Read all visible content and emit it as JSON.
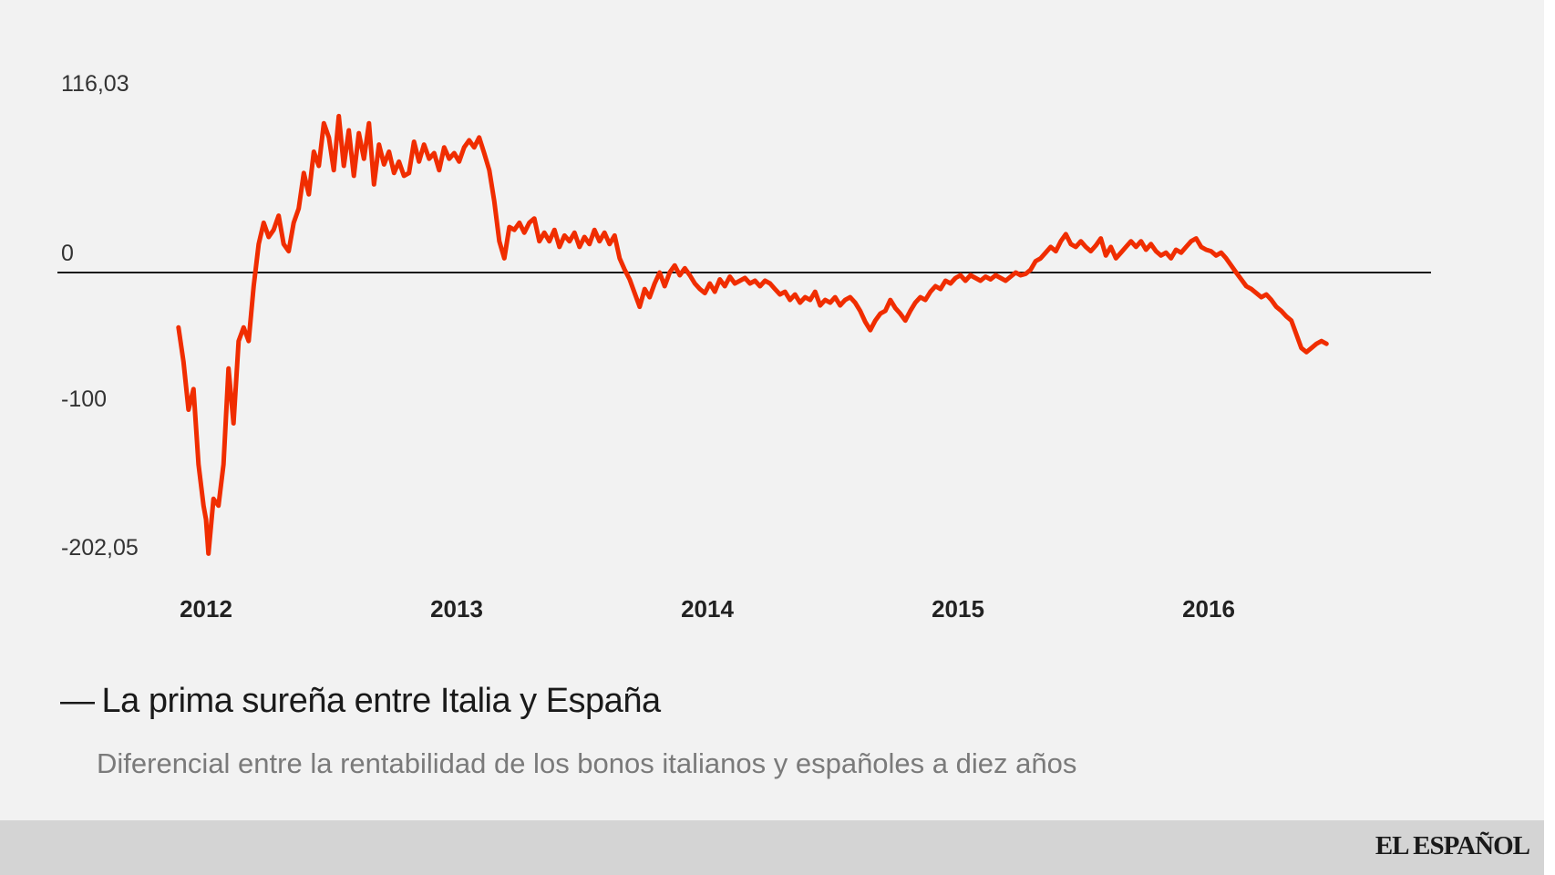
{
  "chart_data": {
    "type": "line",
    "title": "La prima sureña entre Italia y España",
    "subtitle": "Diferencial entre la rentabilidad de los bonos italianos y españoles a diez años",
    "xlabel": "",
    "ylabel": "",
    "y_ticks": [
      {
        "value": 116.03,
        "label": "116,03"
      },
      {
        "value": 0,
        "label": "0"
      },
      {
        "value": -100,
        "label": "-100"
      },
      {
        "value": -202.05,
        "label": "-202,05"
      }
    ],
    "x_ticks": [
      {
        "value": 2012.0,
        "label": "2012"
      },
      {
        "value": 2013.0,
        "label": "2013"
      },
      {
        "value": 2014.0,
        "label": "2014"
      },
      {
        "value": 2015.0,
        "label": "2015"
      },
      {
        "value": 2016.0,
        "label": "2016"
      }
    ],
    "xlim": [
      2011.6,
      2017.1
    ],
    "ylim": [
      -202.05,
      116.03
    ],
    "zero_line": true,
    "series": [
      {
        "name": "La prima sureña entre Italia y España",
        "color": "#f02d00",
        "points": [
          [
            2011.89,
            -40
          ],
          [
            2011.91,
            -65
          ],
          [
            2011.93,
            -100
          ],
          [
            2011.95,
            -85
          ],
          [
            2011.97,
            -140
          ],
          [
            2011.99,
            -170
          ],
          [
            2012.0,
            -180
          ],
          [
            2012.01,
            -205
          ],
          [
            2012.03,
            -165
          ],
          [
            2012.05,
            -170
          ],
          [
            2012.07,
            -140
          ],
          [
            2012.09,
            -70
          ],
          [
            2012.11,
            -110
          ],
          [
            2012.13,
            -50
          ],
          [
            2012.15,
            -40
          ],
          [
            2012.17,
            -50
          ],
          [
            2012.19,
            -10
          ],
          [
            2012.21,
            20
          ],
          [
            2012.23,
            35
          ],
          [
            2012.25,
            25
          ],
          [
            2012.27,
            30
          ],
          [
            2012.29,
            40
          ],
          [
            2012.31,
            20
          ],
          [
            2012.33,
            15
          ],
          [
            2012.35,
            35
          ],
          [
            2012.37,
            45
          ],
          [
            2012.39,
            70
          ],
          [
            2012.41,
            55
          ],
          [
            2012.43,
            85
          ],
          [
            2012.45,
            75
          ],
          [
            2012.47,
            105
          ],
          [
            2012.49,
            95
          ],
          [
            2012.51,
            72
          ],
          [
            2012.53,
            110
          ],
          [
            2012.55,
            75
          ],
          [
            2012.57,
            100
          ],
          [
            2012.59,
            68
          ],
          [
            2012.61,
            98
          ],
          [
            2012.63,
            80
          ],
          [
            2012.65,
            105
          ],
          [
            2012.67,
            62
          ],
          [
            2012.69,
            90
          ],
          [
            2012.71,
            76
          ],
          [
            2012.73,
            85
          ],
          [
            2012.75,
            70
          ],
          [
            2012.77,
            78
          ],
          [
            2012.79,
            68
          ],
          [
            2012.81,
            70
          ],
          [
            2012.83,
            92
          ],
          [
            2012.85,
            78
          ],
          [
            2012.87,
            90
          ],
          [
            2012.89,
            80
          ],
          [
            2012.91,
            84
          ],
          [
            2012.93,
            72
          ],
          [
            2012.95,
            88
          ],
          [
            2012.97,
            80
          ],
          [
            2012.99,
            84
          ],
          [
            2013.01,
            78
          ],
          [
            2013.03,
            88
          ],
          [
            2013.05,
            93
          ],
          [
            2013.07,
            88
          ],
          [
            2013.09,
            95
          ],
          [
            2013.11,
            84
          ],
          [
            2013.13,
            72
          ],
          [
            2013.15,
            50
          ],
          [
            2013.17,
            22
          ],
          [
            2013.19,
            10
          ],
          [
            2013.21,
            32
          ],
          [
            2013.23,
            30
          ],
          [
            2013.25,
            35
          ],
          [
            2013.27,
            28
          ],
          [
            2013.29,
            35
          ],
          [
            2013.31,
            38
          ],
          [
            2013.33,
            22
          ],
          [
            2013.35,
            28
          ],
          [
            2013.37,
            22
          ],
          [
            2013.39,
            30
          ],
          [
            2013.41,
            18
          ],
          [
            2013.43,
            26
          ],
          [
            2013.45,
            22
          ],
          [
            2013.47,
            28
          ],
          [
            2013.49,
            18
          ],
          [
            2013.51,
            25
          ],
          [
            2013.53,
            20
          ],
          [
            2013.55,
            30
          ],
          [
            2013.57,
            22
          ],
          [
            2013.59,
            28
          ],
          [
            2013.61,
            20
          ],
          [
            2013.63,
            26
          ],
          [
            2013.65,
            10
          ],
          [
            2013.67,
            2
          ],
          [
            2013.69,
            -5
          ],
          [
            2013.71,
            -15
          ],
          [
            2013.73,
            -25
          ],
          [
            2013.75,
            -12
          ],
          [
            2013.77,
            -18
          ],
          [
            2013.79,
            -8
          ],
          [
            2013.81,
            0
          ],
          [
            2013.83,
            -10
          ],
          [
            2013.85,
            0
          ],
          [
            2013.87,
            5
          ],
          [
            2013.89,
            -2
          ],
          [
            2013.91,
            3
          ],
          [
            2013.93,
            -2
          ],
          [
            2013.95,
            -8
          ],
          [
            2013.97,
            -12
          ],
          [
            2013.99,
            -15
          ],
          [
            2014.01,
            -8
          ],
          [
            2014.03,
            -14
          ],
          [
            2014.05,
            -5
          ],
          [
            2014.07,
            -10
          ],
          [
            2014.09,
            -3
          ],
          [
            2014.11,
            -8
          ],
          [
            2014.13,
            -6
          ],
          [
            2014.15,
            -4
          ],
          [
            2014.17,
            -8
          ],
          [
            2014.19,
            -6
          ],
          [
            2014.21,
            -10
          ],
          [
            2014.23,
            -6
          ],
          [
            2014.25,
            -8
          ],
          [
            2014.27,
            -12
          ],
          [
            2014.29,
            -16
          ],
          [
            2014.31,
            -14
          ],
          [
            2014.33,
            -20
          ],
          [
            2014.35,
            -16
          ],
          [
            2014.37,
            -22
          ],
          [
            2014.39,
            -18
          ],
          [
            2014.41,
            -20
          ],
          [
            2014.43,
            -14
          ],
          [
            2014.45,
            -24
          ],
          [
            2014.47,
            -20
          ],
          [
            2014.49,
            -22
          ],
          [
            2014.51,
            -18
          ],
          [
            2014.53,
            -24
          ],
          [
            2014.55,
            -20
          ],
          [
            2014.57,
            -18
          ],
          [
            2014.59,
            -22
          ],
          [
            2014.61,
            -28
          ],
          [
            2014.63,
            -36
          ],
          [
            2014.65,
            -42
          ],
          [
            2014.67,
            -35
          ],
          [
            2014.69,
            -30
          ],
          [
            2014.71,
            -28
          ],
          [
            2014.73,
            -20
          ],
          [
            2014.75,
            -26
          ],
          [
            2014.77,
            -30
          ],
          [
            2014.79,
            -35
          ],
          [
            2014.81,
            -28
          ],
          [
            2014.83,
            -22
          ],
          [
            2014.85,
            -18
          ],
          [
            2014.87,
            -20
          ],
          [
            2014.89,
            -14
          ],
          [
            2014.91,
            -10
          ],
          [
            2014.93,
            -12
          ],
          [
            2014.95,
            -6
          ],
          [
            2014.97,
            -8
          ],
          [
            2014.99,
            -4
          ],
          [
            2015.01,
            -2
          ],
          [
            2015.03,
            -6
          ],
          [
            2015.05,
            -2
          ],
          [
            2015.07,
            -4
          ],
          [
            2015.09,
            -6
          ],
          [
            2015.11,
            -3
          ],
          [
            2015.13,
            -5
          ],
          [
            2015.15,
            -2
          ],
          [
            2015.17,
            -4
          ],
          [
            2015.19,
            -6
          ],
          [
            2015.21,
            -3
          ],
          [
            2015.23,
            0
          ],
          [
            2015.25,
            -2
          ],
          [
            2015.27,
            -1
          ],
          [
            2015.29,
            2
          ],
          [
            2015.31,
            8
          ],
          [
            2015.33,
            10
          ],
          [
            2015.35,
            14
          ],
          [
            2015.37,
            18
          ],
          [
            2015.39,
            15
          ],
          [
            2015.41,
            22
          ],
          [
            2015.43,
            27
          ],
          [
            2015.45,
            20
          ],
          [
            2015.47,
            18
          ],
          [
            2015.49,
            22
          ],
          [
            2015.51,
            18
          ],
          [
            2015.53,
            15
          ],
          [
            2015.55,
            19
          ],
          [
            2015.57,
            24
          ],
          [
            2015.59,
            12
          ],
          [
            2015.61,
            18
          ],
          [
            2015.63,
            10
          ],
          [
            2015.65,
            14
          ],
          [
            2015.67,
            18
          ],
          [
            2015.69,
            22
          ],
          [
            2015.71,
            18
          ],
          [
            2015.73,
            22
          ],
          [
            2015.75,
            16
          ],
          [
            2015.77,
            20
          ],
          [
            2015.79,
            15
          ],
          [
            2015.81,
            12
          ],
          [
            2015.83,
            14
          ],
          [
            2015.85,
            10
          ],
          [
            2015.87,
            16
          ],
          [
            2015.89,
            14
          ],
          [
            2015.91,
            18
          ],
          [
            2015.93,
            22
          ],
          [
            2015.95,
            24
          ],
          [
            2015.97,
            18
          ],
          [
            2015.99,
            16
          ],
          [
            2016.01,
            15
          ],
          [
            2016.03,
            12
          ],
          [
            2016.05,
            14
          ],
          [
            2016.07,
            10
          ],
          [
            2016.09,
            5
          ],
          [
            2016.11,
            0
          ],
          [
            2016.13,
            -5
          ],
          [
            2016.15,
            -10
          ],
          [
            2016.17,
            -12
          ],
          [
            2016.19,
            -15
          ],
          [
            2016.21,
            -18
          ],
          [
            2016.23,
            -16
          ],
          [
            2016.25,
            -20
          ],
          [
            2016.27,
            -25
          ],
          [
            2016.29,
            -28
          ],
          [
            2016.31,
            -32
          ],
          [
            2016.33,
            -35
          ],
          [
            2016.35,
            -45
          ],
          [
            2016.37,
            -55
          ],
          [
            2016.39,
            -58
          ],
          [
            2016.41,
            -55
          ],
          [
            2016.43,
            -52
          ],
          [
            2016.45,
            -50
          ],
          [
            2016.47,
            -52
          ]
        ]
      }
    ]
  },
  "brand": "EL ESPAÑOL"
}
